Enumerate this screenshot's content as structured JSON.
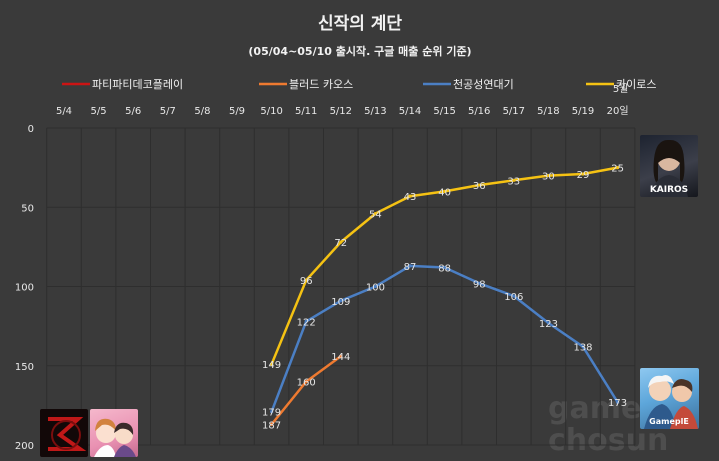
{
  "chart_data": {
    "type": "line",
    "title": "신작의 계단",
    "subtitle": "(05/04~05/10 출시작. 구글 매출 순위 기준)",
    "categories": [
      "5/4",
      "5/5",
      "5/6",
      "5/7",
      "5/8",
      "5/9",
      "5/10",
      "5/11",
      "5/12",
      "5/13",
      "5/14",
      "5/15",
      "5/16",
      "5/17",
      "5/18",
      "5/19",
      "20일"
    ],
    "extra_tick_note": "5월",
    "y_axis": {
      "reversed": true,
      "range": [
        0,
        200
      ],
      "ticks": [
        0,
        50,
        100,
        150,
        200
      ],
      "tick_labels": [
        "0",
        "50",
        "100",
        "150",
        "200"
      ]
    },
    "grid": true,
    "legend_position": "top",
    "series": [
      {
        "name": "파티파티데코플레이",
        "color": "#cc1414",
        "values": [
          null,
          null,
          null,
          null,
          null,
          null,
          null,
          null,
          null,
          null,
          null,
          null,
          null,
          null,
          null,
          null,
          null
        ]
      },
      {
        "name": "블러드 카오스",
        "color": "#ee7a30",
        "values": [
          null,
          null,
          null,
          null,
          null,
          null,
          187,
          160,
          144,
          null,
          null,
          null,
          null,
          null,
          null,
          null,
          null
        ]
      },
      {
        "name": "천공성연대기",
        "color": "#4b7fc4",
        "values": [
          null,
          null,
          null,
          null,
          null,
          null,
          179,
          122,
          109,
          100,
          87,
          88,
          98,
          106,
          123,
          138,
          173
        ]
      },
      {
        "name": "카이로스",
        "color": "#f5c213",
        "values": [
          null,
          null,
          null,
          null,
          null,
          null,
          149,
          96,
          72,
          54,
          43,
          40,
          36,
          33,
          30,
          29,
          25
        ]
      }
    ]
  },
  "watermark": "game chosun",
  "thumbnails": [
    {
      "id": "kairos",
      "label": "KAIROS"
    },
    {
      "id": "chaos",
      "label": "GameplE"
    },
    {
      "id": "red-logo",
      "label": ""
    },
    {
      "id": "pink-party",
      "label": ""
    }
  ]
}
